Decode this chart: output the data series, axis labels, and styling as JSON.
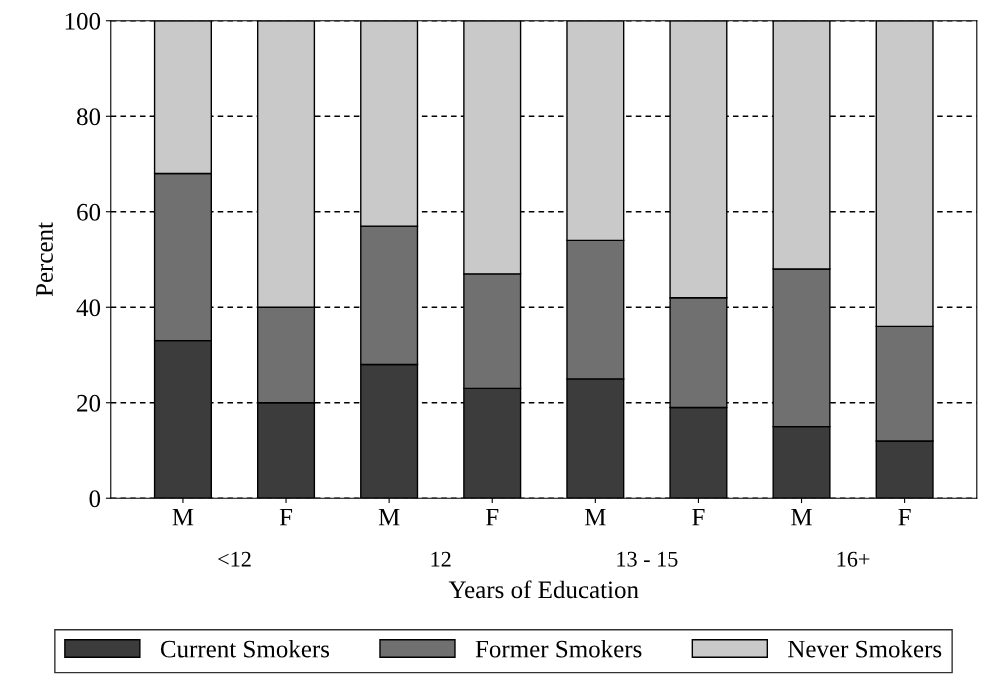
{
  "chart_data": {
    "type": "bar",
    "stacked": true,
    "xlabel": "Years of Education",
    "ylabel": "Percent",
    "categories": [
      "M",
      "F",
      "M",
      "F",
      "M",
      "F",
      "M",
      "F"
    ],
    "annotations": [
      "<12",
      "12",
      "13 - 15",
      "16+"
    ],
    "series": [
      {
        "name": "Current Smokers",
        "color": "#3c3c3c",
        "values": [
          33,
          20,
          28,
          23,
          25,
          19,
          15,
          12
        ]
      },
      {
        "name": "Former Smokers",
        "color": "#707070",
        "values": [
          35,
          20,
          29,
          24,
          29,
          23,
          33,
          24
        ]
      },
      {
        "name": "Never Smokers",
        "color": "#c9c9c9",
        "values": [
          32,
          60,
          43,
          53,
          46,
          58,
          52,
          64
        ]
      }
    ],
    "ylim": [
      0,
      100
    ],
    "yticks": [
      0,
      20,
      40,
      60,
      80,
      100
    ],
    "grid": "y",
    "legend": "bottom"
  }
}
